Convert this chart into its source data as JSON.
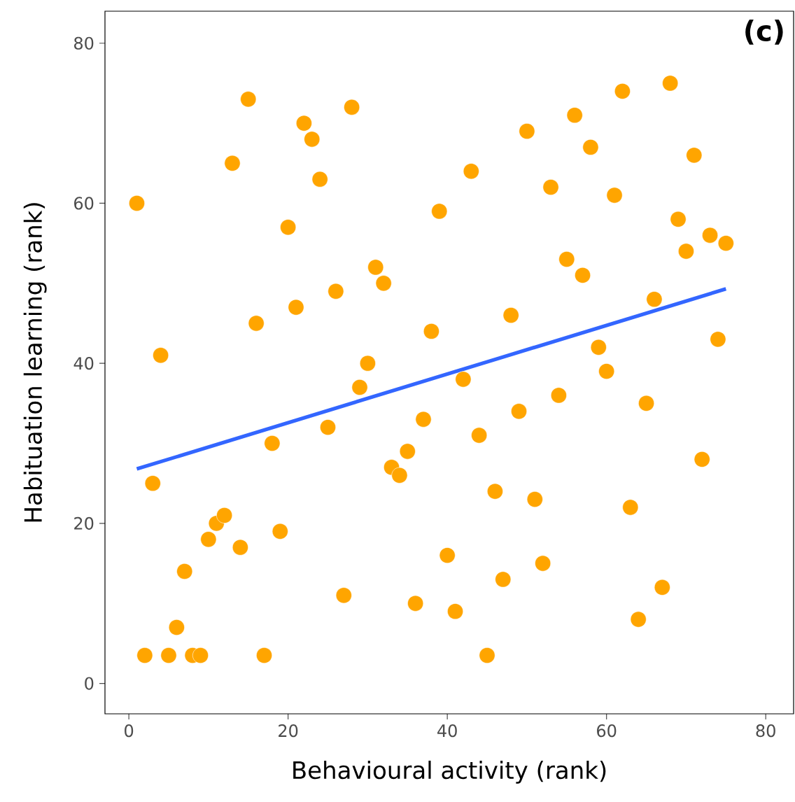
{
  "chart_data": {
    "type": "scatter",
    "xlabel": "Behavioural activity (rank)",
    "ylabel": "Habituation learning (rank)",
    "annotations": [
      "(c)"
    ],
    "xlim": [
      -3,
      83.5
    ],
    "ylim": [
      -3.8,
      84
    ],
    "xticks": [
      0,
      20,
      40,
      60,
      80
    ],
    "yticks": [
      0,
      20,
      40,
      60,
      80
    ],
    "grid": false,
    "series": [
      {
        "marker": "circle",
        "color": "#ffa500",
        "x": [
          1,
          2,
          3,
          4,
          5,
          6,
          7,
          8,
          9,
          10,
          11,
          12,
          13,
          14,
          15,
          16,
          17,
          18,
          19,
          20,
          21,
          22,
          23,
          24,
          25,
          26,
          27,
          28,
          29,
          30,
          31,
          32,
          33,
          34,
          35,
          36,
          37,
          38,
          39,
          40,
          41,
          42,
          43,
          44,
          45,
          46,
          47,
          48,
          49,
          50,
          51,
          52,
          53,
          54,
          55,
          56,
          57,
          58,
          59,
          60,
          61,
          62,
          63,
          64,
          65,
          66,
          67,
          68,
          69,
          70,
          71,
          72,
          73,
          74,
          75
        ],
        "values": [
          60,
          3.5,
          25,
          41,
          3.5,
          7,
          14,
          3.5,
          3.5,
          18,
          20,
          21,
          65,
          17,
          73,
          45,
          3.5,
          30,
          19,
          57,
          47,
          70,
          68,
          63,
          32,
          49,
          11,
          72,
          37,
          40,
          52,
          50,
          27,
          26,
          29,
          10,
          33,
          44,
          59,
          16,
          9,
          38,
          64,
          31,
          3.5,
          24,
          13,
          46,
          34,
          69,
          23,
          15,
          62,
          36,
          53,
          71,
          51,
          67,
          42,
          39,
          61,
          74,
          22,
          8,
          35,
          48,
          12,
          75,
          58,
          54,
          66,
          28,
          56,
          43,
          55
        ]
      },
      {
        "type": "line",
        "color": "#3366ff",
        "x": [
          1,
          75
        ],
        "values": [
          26.8,
          49.3
        ]
      }
    ]
  }
}
